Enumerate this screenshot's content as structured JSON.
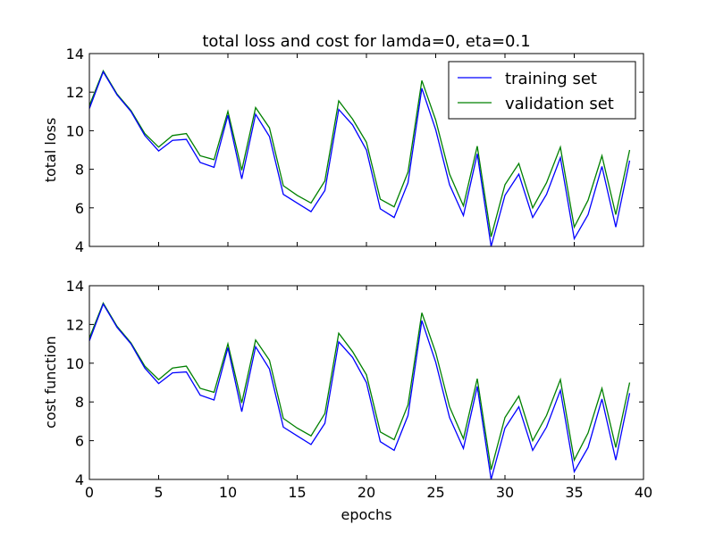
{
  "title": "total loss and cost for lamda=0, eta=0.1",
  "colors": {
    "training": "#0000ff",
    "validation": "#008000"
  },
  "chart_data": [
    {
      "type": "line",
      "title": "total loss and cost for lamda=0, eta=0.1",
      "xlabel": "",
      "ylabel": "total loss",
      "xlim": [
        0,
        40
      ],
      "ylim": [
        4,
        14
      ],
      "yticks": [
        "4",
        "6",
        "8",
        "10",
        "12",
        "14"
      ],
      "xticks": [],
      "legend": {
        "placement": "top-right",
        "entries": [
          "training set",
          "validation set"
        ]
      },
      "x": [
        0,
        1,
        2,
        3,
        4,
        5,
        6,
        7,
        8,
        9,
        10,
        11,
        12,
        13,
        14,
        15,
        16,
        17,
        18,
        19,
        20,
        21,
        22,
        23,
        24,
        25,
        26,
        27,
        28,
        29,
        30,
        31,
        32,
        33,
        34,
        35,
        36,
        37,
        38,
        39
      ],
      "series": [
        {
          "name": "training set",
          "color": "#0000ff",
          "values": [
            11.15,
            13.05,
            11.85,
            11.0,
            9.75,
            8.95,
            9.5,
            9.55,
            8.35,
            8.1,
            10.8,
            7.5,
            10.85,
            9.7,
            6.7,
            6.25,
            5.8,
            6.9,
            11.1,
            10.3,
            9.0,
            5.95,
            5.5,
            7.3,
            12.2,
            10.05,
            7.2,
            5.6,
            8.8,
            4.0,
            6.65,
            7.75,
            5.5,
            6.7,
            8.6,
            4.4,
            5.65,
            8.15,
            5.0,
            8.45
          ]
        },
        {
          "name": "validation set",
          "color": "#008000",
          "values": [
            11.3,
            13.1,
            11.9,
            11.05,
            9.85,
            9.15,
            9.75,
            9.85,
            8.7,
            8.5,
            11.0,
            7.95,
            11.2,
            10.15,
            7.15,
            6.65,
            6.25,
            7.4,
            11.55,
            10.6,
            9.4,
            6.45,
            6.05,
            7.85,
            12.6,
            10.55,
            7.75,
            6.1,
            9.2,
            4.5,
            7.2,
            8.3,
            6.0,
            7.3,
            9.15,
            5.0,
            6.4,
            8.7,
            5.65,
            9.0
          ]
        }
      ]
    },
    {
      "type": "line",
      "title": "",
      "xlabel": "epochs",
      "ylabel": "cost function",
      "xlim": [
        0,
        40
      ],
      "ylim": [
        4,
        14
      ],
      "yticks": [
        "4",
        "6",
        "8",
        "10",
        "12",
        "14"
      ],
      "xticks": [
        "0",
        "5",
        "10",
        "15",
        "20",
        "25",
        "30",
        "35",
        "40"
      ],
      "x": [
        0,
        1,
        2,
        3,
        4,
        5,
        6,
        7,
        8,
        9,
        10,
        11,
        12,
        13,
        14,
        15,
        16,
        17,
        18,
        19,
        20,
        21,
        22,
        23,
        24,
        25,
        26,
        27,
        28,
        29,
        30,
        31,
        32,
        33,
        34,
        35,
        36,
        37,
        38,
        39
      ],
      "series": [
        {
          "name": "training set",
          "color": "#0000ff",
          "values": [
            11.15,
            13.05,
            11.85,
            11.0,
            9.75,
            8.95,
            9.5,
            9.55,
            8.35,
            8.1,
            10.8,
            7.5,
            10.85,
            9.7,
            6.7,
            6.25,
            5.8,
            6.9,
            11.1,
            10.3,
            9.0,
            5.95,
            5.5,
            7.3,
            12.2,
            10.05,
            7.2,
            5.6,
            8.8,
            4.0,
            6.65,
            7.75,
            5.5,
            6.7,
            8.6,
            4.4,
            5.65,
            8.15,
            5.0,
            8.45
          ]
        },
        {
          "name": "validation set",
          "color": "#008000",
          "values": [
            11.3,
            13.1,
            11.9,
            11.05,
            9.85,
            9.15,
            9.75,
            9.85,
            8.7,
            8.5,
            11.0,
            7.95,
            11.2,
            10.15,
            7.15,
            6.65,
            6.25,
            7.4,
            11.55,
            10.6,
            9.4,
            6.45,
            6.05,
            7.85,
            12.6,
            10.55,
            7.75,
            6.1,
            9.2,
            4.5,
            7.2,
            8.3,
            6.0,
            7.3,
            9.15,
            5.0,
            6.4,
            8.7,
            5.65,
            9.0
          ]
        }
      ]
    }
  ]
}
